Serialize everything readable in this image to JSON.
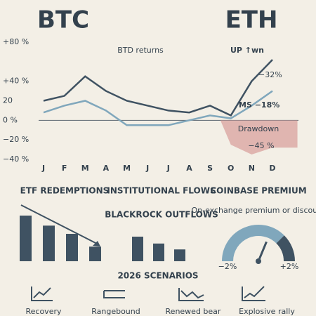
{
  "title_left": "BTC",
  "title_right": "ETH",
  "chart_data": [
    {
      "type": "line",
      "categories": [
        "J",
        "F",
        "M",
        "A",
        "M",
        "J",
        "J",
        "A",
        "S",
        "O",
        "N",
        "D"
      ],
      "series": [
        {
          "name": "BTC",
          "color": "#3f5262",
          "values": [
            20,
            25,
            45,
            30,
            20,
            15,
            10,
            8,
            15,
            5,
            40,
            62
          ]
        },
        {
          "name": "ETH",
          "color": "#80a7bc",
          "values": [
            8,
            15,
            20,
            10,
            -5,
            -5,
            -5,
            0,
            5,
            2,
            15,
            30
          ]
        },
        {
          "name": "Drawdown",
          "color": "#dba6a2",
          "values": [
            null,
            null,
            null,
            null,
            null,
            null,
            null,
            null,
            null,
            -25,
            -35,
            -28
          ]
        }
      ],
      "annotations": [
        "BTD returns",
        "UP ↑wn",
        "−32%",
        "MS −18%",
        "−45 %"
      ],
      "ylim": [
        -40,
        80
      ],
      "yticks": [
        {
          "value": 80,
          "label": "+80 %"
        },
        {
          "value": 40,
          "label": "+40 %"
        },
        20,
        {
          "value": 0,
          "label": "0 %"
        },
        {
          "value": -20,
          "label": "−20 %"
        },
        {
          "value": -40,
          "label": "−40 %"
        }
      ]
    },
    {
      "type": "bar",
      "title": "ETF REDEMPTIONS",
      "color": "#3f5262",
      "values": [
        100,
        78,
        60,
        32
      ]
    },
    {
      "type": "bar",
      "title": "INSTITUTIONAL FLOWS",
      "subtitle": "BLACKROCK OUTFLOWS",
      "color": "#3f5262",
      "values": [
        100,
        72,
        48
      ]
    },
    {
      "type": "gauge",
      "title": "COINBASE PREMIUM",
      "subtitle": "On-exchange premium or discount",
      "value": 0.5,
      "xlim": [
        -2,
        2
      ],
      "xticks": [
        {
          "value": -2,
          "label": "−2%"
        },
        {
          "value": 2,
          "label": "+2%"
        }
      ]
    }
  ],
  "scenarios": {
    "title": "2026 SCENARIOS",
    "items": [
      "Recovery",
      "Rangebound",
      "Renewed bear",
      "Explosive rally"
    ]
  }
}
